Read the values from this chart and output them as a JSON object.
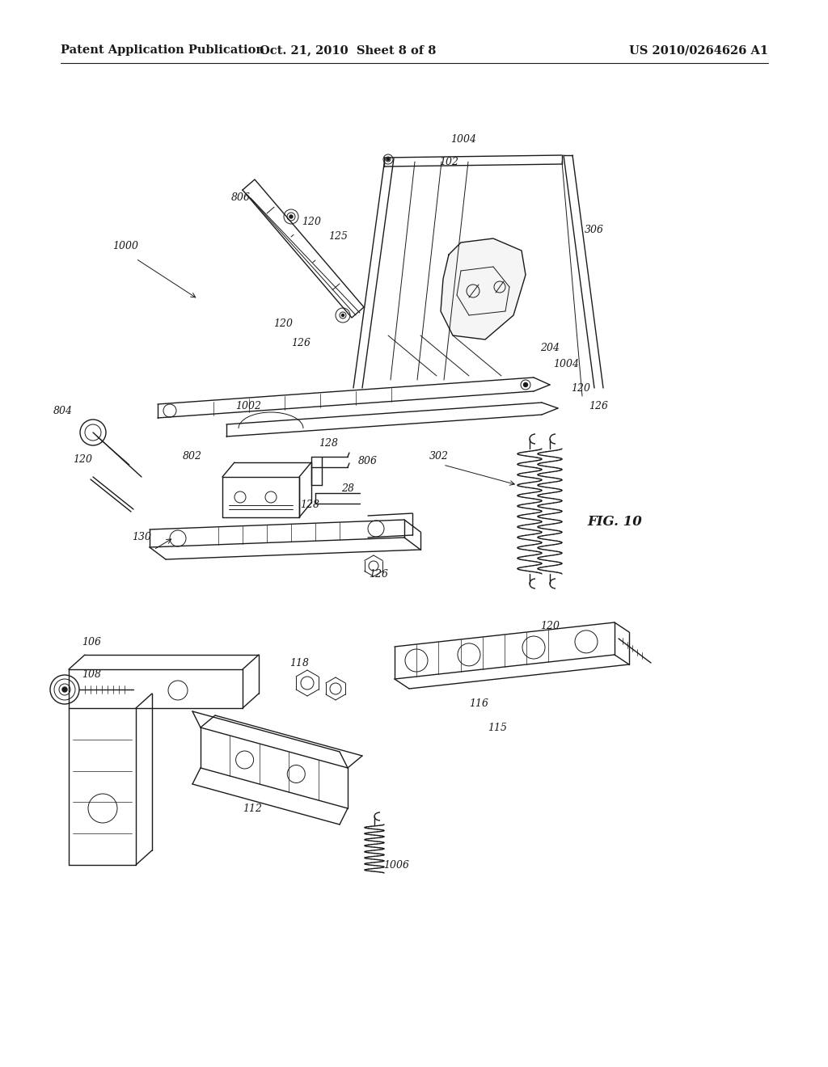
{
  "background_color": "#ffffff",
  "header_left": "Patent Application Publication",
  "header_center": "Oct. 21, 2010  Sheet 8 of 8",
  "header_right": "US 2010/0264626 A1",
  "figure_label": "FIG. 10",
  "header_fontsize": 10.5,
  "fig_label_fontsize": 12,
  "col": "#1a1a1a"
}
